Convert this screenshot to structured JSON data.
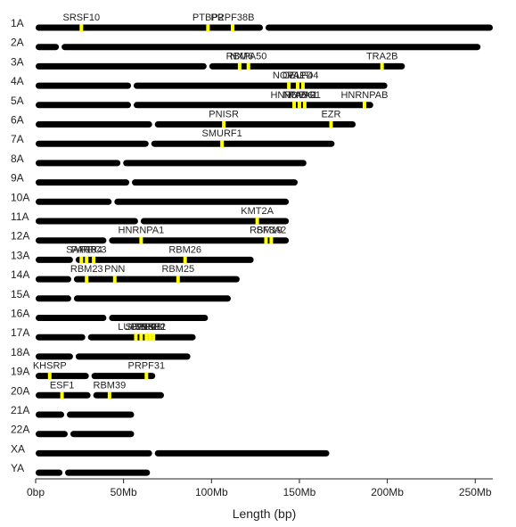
{
  "chart_data": {
    "type": "ideogram",
    "xlabel": "Length (bp)",
    "xlim": [
      0,
      260000000
    ],
    "xticks": [
      {
        "value": 0,
        "label": "0bp"
      },
      {
        "value": 50000000,
        "label": "50Mb"
      },
      {
        "value": 100000000,
        "label": "100Mb"
      },
      {
        "value": 150000000,
        "label": "150Mb"
      },
      {
        "value": 200000000,
        "label": "200Mb"
      },
      {
        "value": 250000000,
        "label": "250Mb"
      }
    ],
    "colors": {
      "chromosome": "#000000",
      "highlight": "#ffff00",
      "text": "#222222"
    },
    "chromosomes": [
      {
        "name": "1A",
        "length": 260000000,
        "centromere": 130000000
      },
      {
        "name": "2A",
        "length": 253000000,
        "centromere": 14000000
      },
      {
        "name": "3A",
        "length": 210000000,
        "centromere": 98000000
      },
      {
        "name": "4A",
        "length": 200000000,
        "centromere": 55000000
      },
      {
        "name": "5A",
        "length": 192000000,
        "centromere": 55000000
      },
      {
        "name": "6A",
        "length": 182000000,
        "centromere": 67000000
      },
      {
        "name": "7A",
        "length": 170000000,
        "centromere": 65000000
      },
      {
        "name": "8A",
        "length": 154000000,
        "centromere": 49000000
      },
      {
        "name": "9A",
        "length": 149000000,
        "centromere": 54000000
      },
      {
        "name": "10A",
        "length": 144000000,
        "centromere": 44000000
      },
      {
        "name": "11A",
        "length": 144000000,
        "centromere": 59000000
      },
      {
        "name": "12A",
        "length": 144000000,
        "centromere": 41000000
      },
      {
        "name": "13A",
        "length": 124000000,
        "centromere": 22000000
      },
      {
        "name": "14A",
        "length": 116000000,
        "centromere": 21000000
      },
      {
        "name": "15A",
        "length": 111000000,
        "centromere": 21000000
      },
      {
        "name": "16A",
        "length": 98000000,
        "centromere": 41000000
      },
      {
        "name": "17A",
        "length": 91000000,
        "centromere": 29000000
      },
      {
        "name": "18A",
        "length": 88000000,
        "centromere": 22000000
      },
      {
        "name": "19A",
        "length": 68000000,
        "centromere": 31000000
      },
      {
        "name": "20A",
        "length": 73000000,
        "centromere": 32000000
      },
      {
        "name": "21A",
        "length": 56000000,
        "centromere": 17000000
      },
      {
        "name": "22A",
        "length": 56000000,
        "centromere": 19000000
      },
      {
        "name": "XA",
        "length": 167000000,
        "centromere": 67000000
      },
      {
        "name": "YA",
        "length": 65000000,
        "centromere": 16000000
      }
    ],
    "genes": [
      {
        "chrom": "1A",
        "label": "SRSF10",
        "position": 26000000
      },
      {
        "chrom": "1A",
        "label": "PTBP2",
        "position": 98000000
      },
      {
        "chrom": "1A",
        "label": "PRPF38B",
        "position": 112000000
      },
      {
        "chrom": "3A",
        "label": "RBM6",
        "position": 116000000
      },
      {
        "chrom": "3A",
        "label": "NXPA50",
        "position": 121000000
      },
      {
        "chrom": "3A",
        "label": "TRA2B",
        "position": 197000000
      },
      {
        "chrom": "4A",
        "label": "NOVA1",
        "position": 144000000
      },
      {
        "chrom": "4A",
        "label": "CELF4",
        "position": 149000000
      },
      {
        "chrom": "4A",
        "label": "PAPD4",
        "position": 152000000
      },
      {
        "chrom": "5A",
        "label": "HNRNPH1",
        "position": 147000000
      },
      {
        "chrom": "5A",
        "label": "NOVA2",
        "position": 150000000
      },
      {
        "chrom": "5A",
        "label": "PABG1",
        "position": 153000000
      },
      {
        "chrom": "5A",
        "label": "HNRNPAB",
        "position": 187000000
      },
      {
        "chrom": "6A",
        "label": "PNISR",
        "position": 107000000
      },
      {
        "chrom": "6A",
        "label": "EZR",
        "position": 168000000
      },
      {
        "chrom": "7A",
        "label": "SMURF1",
        "position": 106000000
      },
      {
        "chrom": "11A",
        "label": "KMT2A",
        "position": 126000000
      },
      {
        "chrom": "12A",
        "label": "HNRNPA1",
        "position": 60000000
      },
      {
        "chrom": "12A",
        "label": "RBM19",
        "position": 131000000
      },
      {
        "chrom": "12A",
        "label": "SF3A2",
        "position": 134000000
      },
      {
        "chrom": "13A",
        "label": "SAP18",
        "position": 26000000
      },
      {
        "chrom": "13A",
        "label": "PARP4",
        "position": 29000000
      },
      {
        "chrom": "13A",
        "label": "RFC3",
        "position": 33000000
      },
      {
        "chrom": "13A",
        "label": "RBM26",
        "position": 85000000
      },
      {
        "chrom": "14A",
        "label": "RBM23",
        "position": 29000000
      },
      {
        "chrom": "14A",
        "label": "PNN",
        "position": 45000000
      },
      {
        "chrom": "14A",
        "label": "RBM25",
        "position": 81000000
      },
      {
        "chrom": "17A",
        "label": "LUC7L3",
        "position": 57000000
      },
      {
        "chrom": "17A",
        "label": "SRSF1",
        "position": 60000000
      },
      {
        "chrom": "17A",
        "label": "PRPF8",
        "position": 63000000
      },
      {
        "chrom": "17A",
        "label": "SRSF2",
        "position": 65000000
      },
      {
        "chrom": "17A",
        "label": "SKB1",
        "position": 67000000
      },
      {
        "chrom": "19A",
        "label": "KHSRP",
        "position": 8000000
      },
      {
        "chrom": "19A",
        "label": "PRPF31",
        "position": 63000000
      },
      {
        "chrom": "20A",
        "label": "ESF1",
        "position": 15000000
      },
      {
        "chrom": "20A",
        "label": "RBM39",
        "position": 42000000
      }
    ]
  }
}
